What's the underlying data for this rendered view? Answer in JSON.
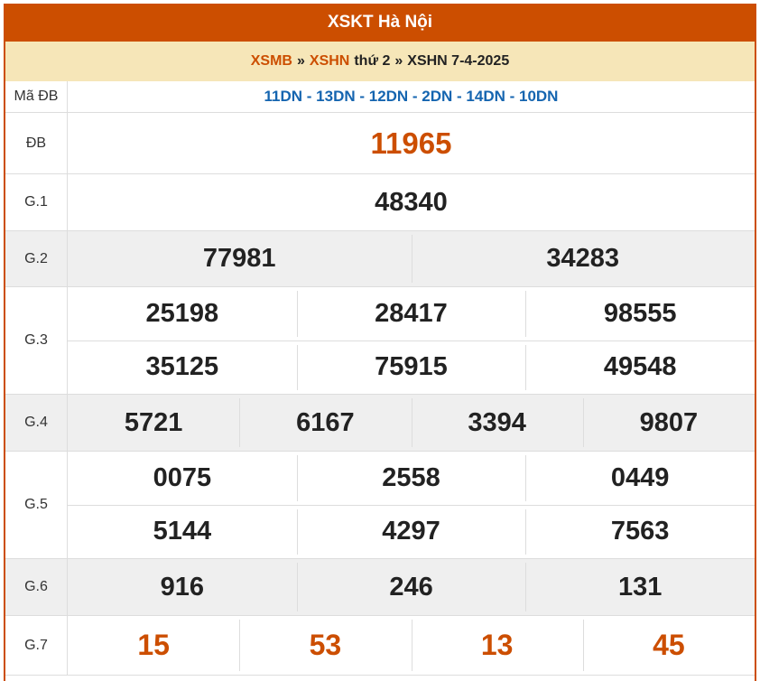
{
  "header": {
    "title": "XSKT Hà Nội"
  },
  "breadcrumb": {
    "items": [
      "XSMB",
      "»",
      "XSHN",
      "thứ 2",
      "»",
      "XSHN 7-4-2025"
    ]
  },
  "colors": {
    "accent": "#cc4e00",
    "code": "#1565b0",
    "crumb_bg": "#f6e6b8"
  },
  "rows": {
    "ma": {
      "label": "Mã ĐB",
      "value": "11DN - 13DN - 12DN - 2DN - 14DN - 10DN"
    },
    "db": {
      "label": "ĐB",
      "values": [
        "11965"
      ]
    },
    "g1": {
      "label": "G.1",
      "values": [
        "48340"
      ]
    },
    "g2": {
      "label": "G.2",
      "values": [
        "77981",
        "34283"
      ]
    },
    "g3": {
      "label": "G.3",
      "values": [
        "25198",
        "28417",
        "98555",
        "35125",
        "75915",
        "49548"
      ]
    },
    "g4": {
      "label": "G.4",
      "values": [
        "5721",
        "6167",
        "3394",
        "9807"
      ]
    },
    "g5": {
      "label": "G.5",
      "values": [
        "0075",
        "2558",
        "0449",
        "5144",
        "4297",
        "7563"
      ]
    },
    "g6": {
      "label": "G.6",
      "values": [
        "916",
        "246",
        "131"
      ]
    },
    "g7": {
      "label": "G.7",
      "values": [
        "15",
        "53",
        "13",
        "45"
      ]
    }
  }
}
